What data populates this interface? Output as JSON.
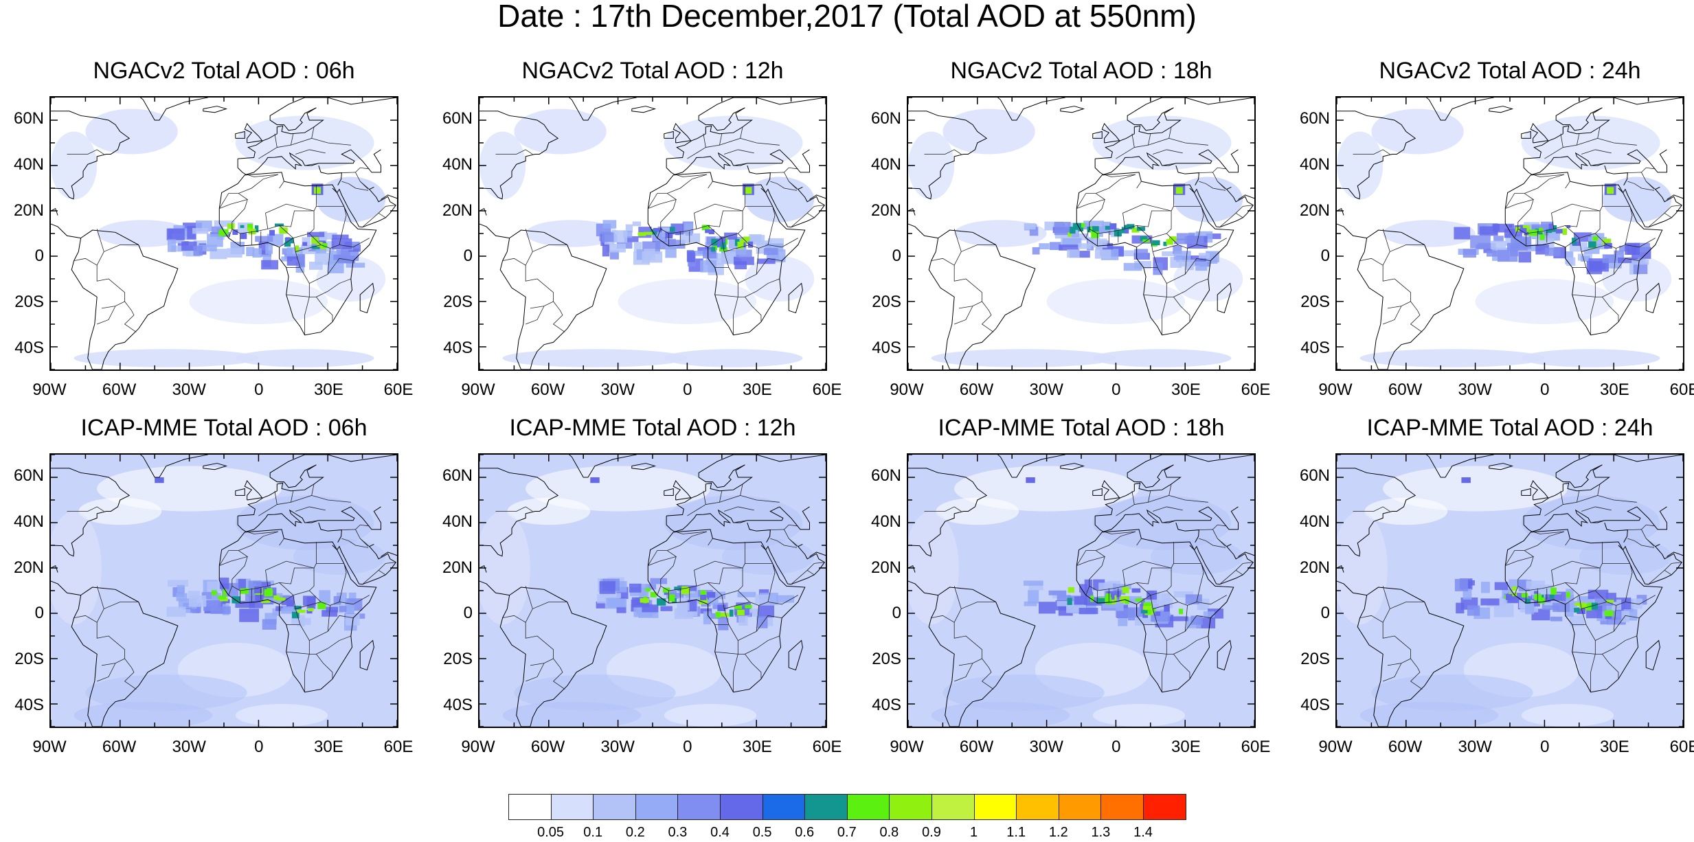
{
  "title": "Date : 17th December,2017 (Total AOD at 550nm)",
  "lat_labels": [
    "60N",
    "40N",
    "20N",
    "0",
    "20S",
    "40S"
  ],
  "lon_labels": [
    "90W",
    "60W",
    "30W",
    "0",
    "30E",
    "60E"
  ],
  "panels": [
    {
      "title": "NGACv2 Total AOD : 06h",
      "model": "NGACv2",
      "hour": "06h"
    },
    {
      "title": "NGACv2 Total AOD : 12h",
      "model": "NGACv2",
      "hour": "12h"
    },
    {
      "title": "NGACv2 Total AOD : 18h",
      "model": "NGACv2",
      "hour": "18h"
    },
    {
      "title": "NGACv2 Total AOD : 24h",
      "model": "NGACv2",
      "hour": "24h"
    },
    {
      "title": "ICAP-MME Total AOD : 06h",
      "model": "ICAP-MME",
      "hour": "06h"
    },
    {
      "title": "ICAP-MME Total AOD : 12h",
      "model": "ICAP-MME",
      "hour": "12h"
    },
    {
      "title": "ICAP-MME Total AOD : 18h",
      "model": "ICAP-MME",
      "hour": "18h"
    },
    {
      "title": "ICAP-MME Total AOD : 24h",
      "model": "ICAP-MME",
      "hour": "24h"
    }
  ],
  "colorbar": {
    "labels": [
      "0.05",
      "0.1",
      "0.2",
      "0.3",
      "0.4",
      "0.5",
      "0.6",
      "0.7",
      "0.8",
      "0.9",
      "1",
      "1.1",
      "1.2",
      "1.3",
      "1.4"
    ],
    "colors": [
      "#ffffff",
      "#d6dffc",
      "#b3c3f8",
      "#95abf6",
      "#7f8ef0",
      "#6469ea",
      "#1b6ae8",
      "#12968f",
      "#5cf011",
      "#90f00f",
      "#c0f040",
      "#ffff00",
      "#ffc000",
      "#ff9a00",
      "#ff7000",
      "#ff2000"
    ]
  }
}
